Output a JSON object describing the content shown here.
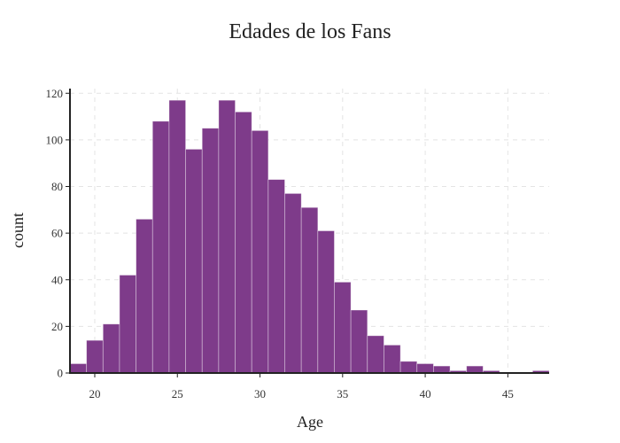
{
  "chart_data": {
    "type": "bar",
    "title": "Edades de los Fans",
    "xlabel": "Age",
    "ylabel": "count",
    "xlim": [
      18.5,
      47.5
    ],
    "ylim": [
      0,
      122
    ],
    "xticks": [
      20,
      25,
      30,
      35,
      40,
      45
    ],
    "yticks": [
      0,
      20,
      40,
      60,
      80,
      100,
      120
    ],
    "grid": true,
    "bar_color": "#7e3b8a",
    "bin_width": 1,
    "bins_start": [
      18.5,
      19.5,
      20.5,
      21.5,
      22.5,
      23.5,
      24.5,
      25.5,
      26.5,
      27.5,
      28.5,
      29.5,
      30.5,
      31.5,
      32.5,
      33.5,
      34.5,
      35.5,
      36.5,
      37.5,
      38.5,
      39.5,
      40.5,
      41.5,
      42.5,
      43.5,
      44.5,
      45.5,
      46.5
    ],
    "values": [
      4,
      14,
      21,
      42,
      66,
      108,
      117,
      96,
      105,
      117,
      112,
      104,
      83,
      77,
      71,
      61,
      39,
      27,
      16,
      12,
      5,
      4,
      3,
      1,
      3,
      1,
      0,
      0,
      1
    ]
  }
}
